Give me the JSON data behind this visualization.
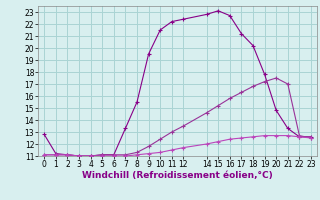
{
  "line1_x": [
    0,
    1,
    2,
    3,
    4,
    5,
    6,
    7,
    8,
    9,
    10,
    11,
    12,
    14,
    15,
    16,
    17,
    18,
    19,
    20,
    21,
    22,
    23
  ],
  "line1_y": [
    12.8,
    11.2,
    11.1,
    11.0,
    11.0,
    11.1,
    11.1,
    13.3,
    15.5,
    19.5,
    21.5,
    22.2,
    22.4,
    22.8,
    23.1,
    22.7,
    21.2,
    20.2,
    17.8,
    14.8,
    13.3,
    12.6,
    12.6
  ],
  "line2_x": [
    0,
    1,
    2,
    3,
    4,
    5,
    6,
    7,
    8,
    9,
    10,
    11,
    12,
    14,
    15,
    16,
    17,
    18,
    19,
    20,
    21,
    22,
    23
  ],
  "line2_y": [
    11.1,
    11.1,
    11.1,
    11.0,
    11.0,
    11.1,
    11.1,
    11.1,
    11.3,
    11.8,
    12.4,
    13.0,
    13.5,
    14.6,
    15.2,
    15.8,
    16.3,
    16.8,
    17.2,
    17.5,
    17.0,
    12.7,
    12.5
  ],
  "line3_x": [
    0,
    1,
    2,
    3,
    4,
    5,
    6,
    7,
    8,
    9,
    10,
    11,
    12,
    14,
    15,
    16,
    17,
    18,
    19,
    20,
    21,
    22,
    23
  ],
  "line3_y": [
    11.1,
    11.1,
    11.1,
    11.0,
    11.0,
    11.0,
    11.0,
    11.0,
    11.1,
    11.2,
    11.3,
    11.5,
    11.7,
    12.0,
    12.2,
    12.4,
    12.5,
    12.6,
    12.7,
    12.7,
    12.7,
    12.6,
    12.5
  ],
  "line1_color": "#880088",
  "line2_color": "#993399",
  "line3_color": "#bb44bb",
  "bg_color": "#d8efef",
  "grid_color": "#aad4d4",
  "xlabel": "Windchill (Refroidissement éolien,°C)",
  "xlim": [
    -0.5,
    23.5
  ],
  "ylim": [
    11,
    23.5
  ],
  "xticks": [
    0,
    1,
    2,
    3,
    4,
    5,
    6,
    7,
    8,
    9,
    10,
    11,
    12,
    14,
    15,
    16,
    17,
    18,
    19,
    20,
    21,
    22,
    23
  ],
  "yticks": [
    11,
    12,
    13,
    14,
    15,
    16,
    17,
    18,
    19,
    20,
    21,
    22,
    23
  ],
  "tick_fontsize": 5.5,
  "xlabel_fontsize": 6.5
}
